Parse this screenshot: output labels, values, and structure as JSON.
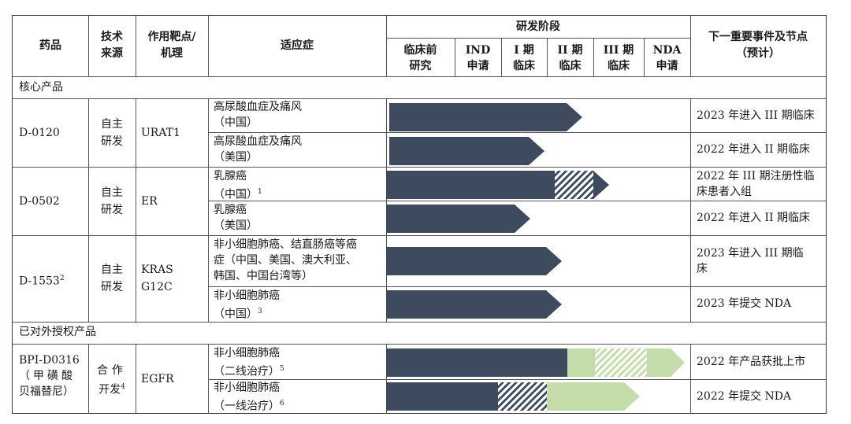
{
  "header": {
    "drug": "药品",
    "source": [
      "技术",
      "来源"
    ],
    "target": [
      "作用靶点/",
      "机理"
    ],
    "indication": "适应症",
    "stage": "研发阶段",
    "stages": [
      [
        "临床前",
        "研究"
      ],
      [
        "IND",
        "申请"
      ],
      [
        "I 期",
        "临床"
      ],
      [
        "II 期",
        "临床"
      ],
      [
        "III 期",
        "临床"
      ],
      [
        "NDA",
        "申请"
      ]
    ],
    "next_event": [
      "下一重要事件及节点",
      "（预计）"
    ]
  },
  "sections": {
    "core": "核心产品",
    "licensed": "已对外授权产品"
  },
  "drugs": [
    {
      "name": "D-0120",
      "source": [
        "自主",
        "研发"
      ],
      "target": [
        "URAT1"
      ],
      "rows": [
        {
          "indication": [
            "高尿酸血症及痛风",
            "（中国）"
          ],
          "progress": "II 期临床",
          "event": "2023 年进入 III 期临床"
        },
        {
          "indication": [
            "高尿酸血症及痛风",
            "（美国）"
          ],
          "progress": "I 期临床",
          "event": "2022 年进入 II 期临床"
        }
      ]
    },
    {
      "name": "D-0502",
      "source": [
        "自主",
        "研发"
      ],
      "target": [
        "ER"
      ],
      "rows": [
        {
          "indication": [
            "乳腺癌",
            "（中国）"
          ],
          "note": "1",
          "progress": "III 期临床（进行中）",
          "event": [
            "2022 年 III 期注册性临",
            "床患者入组"
          ]
        },
        {
          "indication": [
            "乳腺癌",
            "（美国）"
          ],
          "progress": "I 期临床",
          "event": "2022 年进入 II 期临床"
        }
      ]
    },
    {
      "name": "D-1553",
      "note": "2",
      "source": [
        "自主",
        "研发"
      ],
      "target": [
        "KRAS",
        "G12C"
      ],
      "rows": [
        {
          "indication": [
            "非小细胞肺癌、结直肠癌等癌",
            "症（中国、美国、澳大利亚、",
            "韩国、中国台湾等）"
          ],
          "progress": "II 期临床",
          "event": [
            "2023 年进入 III 期临",
            "床"
          ]
        },
        {
          "indication": [
            "非小细胞肺癌",
            "（中国）"
          ],
          "note": "3",
          "progress": "II 期临床",
          "event": "2023 年提交 NDA"
        }
      ]
    },
    {
      "name": [
        "BPI-D0316",
        "（甲磺酸",
        "贝福替尼）"
      ],
      "source": [
        "合作",
        "开发"
      ],
      "source_note": "4",
      "target": [
        "EGFR"
      ],
      "rows": [
        {
          "indication": [
            "非小细胞肺癌",
            "（二线治疗）"
          ],
          "note": "5",
          "progress": "NDA 申请",
          "event": "2022 年产品获批上市"
        },
        {
          "indication": [
            "非小细胞肺癌",
            "（一线治疗）"
          ],
          "note": "6",
          "progress": "III 期临床",
          "event": "2022 年提交 NDA"
        }
      ]
    }
  ],
  "colors": {
    "bar": "#3e4a5e",
    "partner_bar": "#c4dcaa",
    "border": "#333333"
  }
}
